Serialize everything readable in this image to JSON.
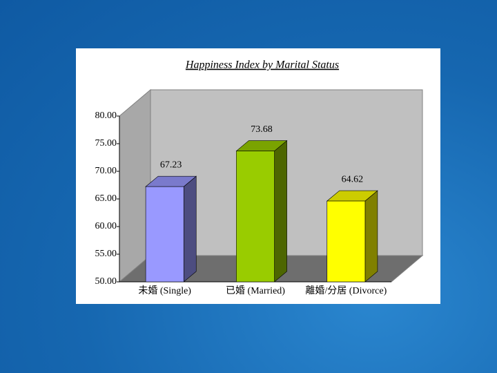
{
  "chart_data": {
    "type": "bar",
    "title": "Happiness Index by Marital Status",
    "categories": [
      "未婚 (Single)",
      "已婚 (Married)",
      "離婚/分居 (Divorce)"
    ],
    "series": [
      {
        "name": "Happiness Index",
        "values": [
          67.23,
          73.68,
          64.62
        ],
        "colors": [
          "#9999ff",
          "#99cc00",
          "#ffff00"
        ]
      }
    ],
    "ylim": [
      50,
      80
    ],
    "yticks": [
      {
        "value": 50,
        "label": "50.00"
      },
      {
        "value": 55,
        "label": "55.00"
      },
      {
        "value": 60,
        "label": "60.00"
      },
      {
        "value": 65,
        "label": "65.00"
      },
      {
        "value": 70,
        "label": "70.00"
      },
      {
        "value": 75,
        "label": "75.00"
      },
      {
        "value": 80,
        "label": "80.00"
      }
    ],
    "grid": false
  }
}
